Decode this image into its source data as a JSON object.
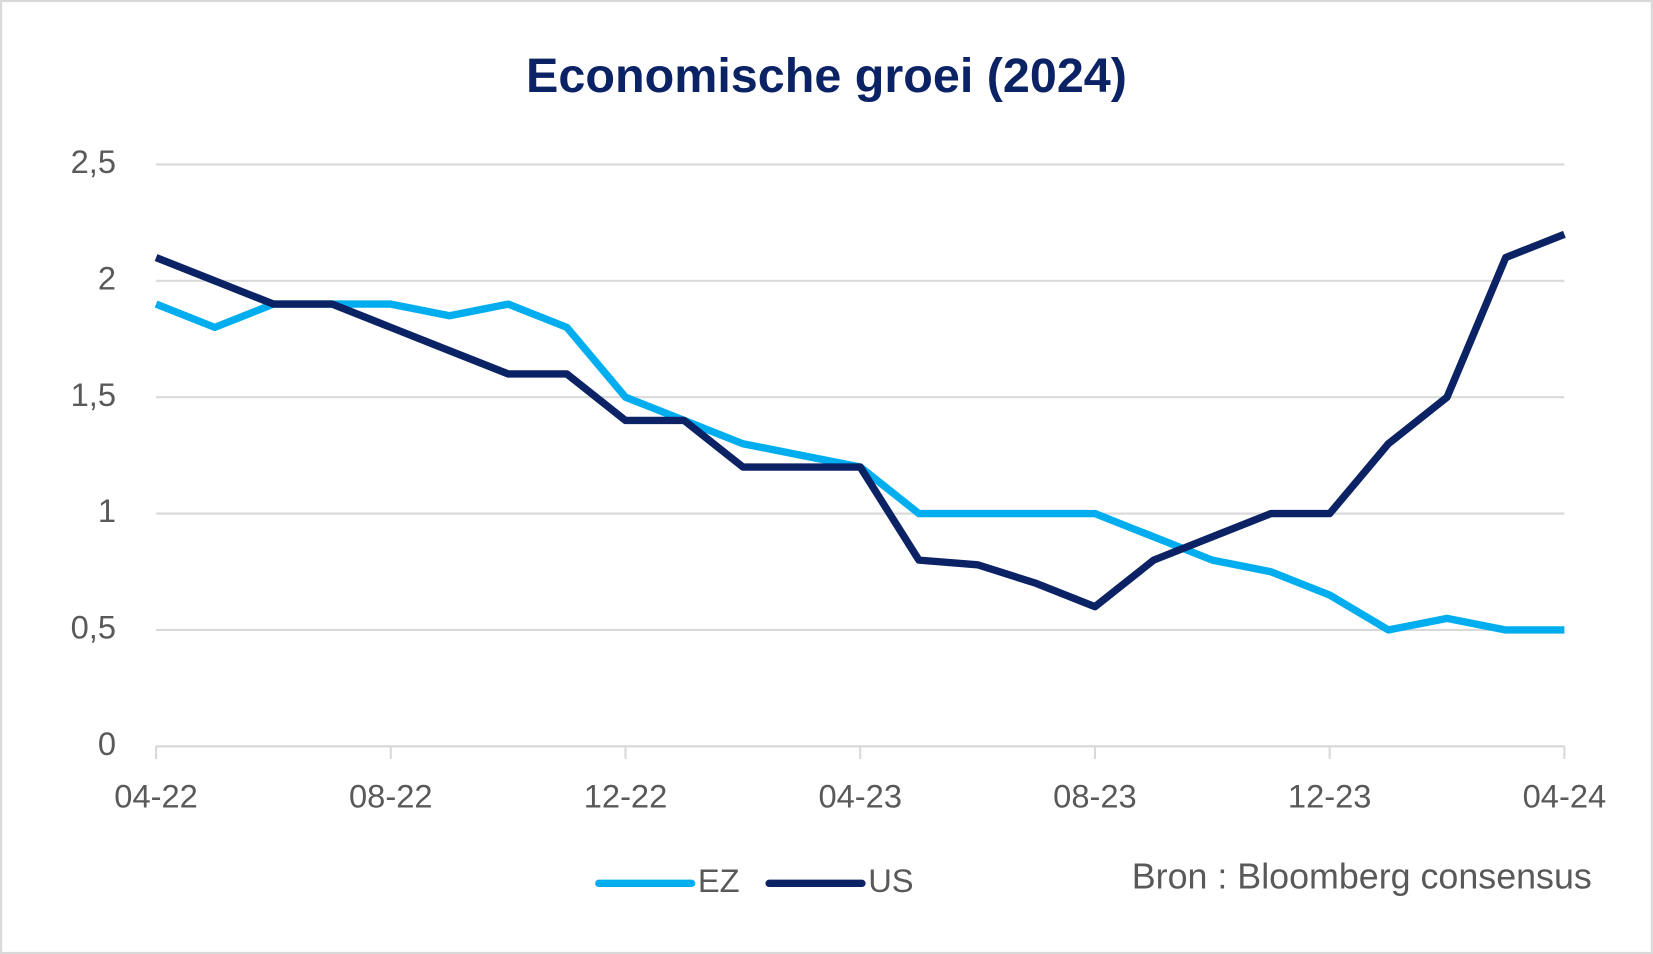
{
  "chart_data": {
    "type": "line",
    "title": "Economische groei (2024)",
    "note": "Bron : Bloomberg consensus",
    "categories": [
      "04-22",
      null,
      null,
      null,
      "08-22",
      null,
      null,
      null,
      "12-22",
      null,
      null,
      null,
      "04-23",
      null,
      null,
      null,
      "08-23",
      null,
      null,
      null,
      "12-23",
      null,
      null,
      null,
      "04-24"
    ],
    "series": [
      {
        "name": "EZ",
        "color": "#00aeef",
        "values": [
          1.9,
          1.8,
          1.9,
          1.9,
          1.9,
          1.85,
          1.9,
          1.8,
          1.5,
          1.4,
          1.3,
          1.25,
          1.2,
          1.0,
          1.0,
          1.0,
          1.0,
          0.9,
          0.8,
          0.75,
          0.65,
          0.5,
          0.55,
          0.5,
          0.5
        ]
      },
      {
        "name": "US",
        "color": "#0b2265",
        "values": [
          2.1,
          2.0,
          1.9,
          1.9,
          1.8,
          1.7,
          1.6,
          1.6,
          1.4,
          1.4,
          1.2,
          1.2,
          1.2,
          0.8,
          0.78,
          0.7,
          0.6,
          0.8,
          0.9,
          1.0,
          1.0,
          1.3,
          1.5,
          2.1,
          2.2
        ]
      }
    ],
    "ylim": [
      0,
      2.5
    ],
    "yticks": [
      0,
      {
        "value": 0.5,
        "label": "0,5"
      },
      1,
      {
        "value": 1.5,
        "label": "1,5"
      },
      2,
      {
        "value": 2.5,
        "label": "2,5"
      }
    ],
    "grid": true,
    "legend": "bottom"
  }
}
